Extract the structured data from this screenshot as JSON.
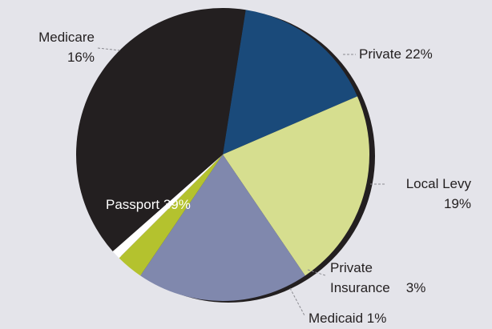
{
  "chart_data": {
    "type": "pie",
    "categories": [
      "Medicare",
      "Private",
      "Local Levy",
      "Private Insurance",
      "Medicaid",
      "Passport"
    ],
    "values": [
      16,
      22,
      19,
      3,
      1,
      39
    ],
    "value_labels": [
      "16%",
      "22%",
      "19%",
      "3%",
      "1%",
      "39%"
    ],
    "colors": [
      "#1a4a7a",
      "#d6de8f",
      "#8088ad",
      "#b4c22e",
      "#ffffff",
      "#231f20"
    ]
  }
}
